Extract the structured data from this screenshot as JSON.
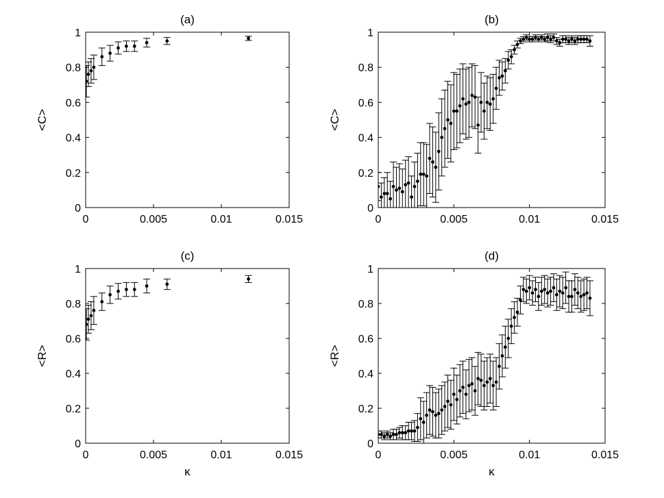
{
  "chart_data": [
    {
      "type": "scatter",
      "title": "(a)",
      "xlabel": "",
      "ylabel": "<C>",
      "xlim": [
        0,
        0.015
      ],
      "ylim": [
        0,
        1
      ],
      "xticks": [
        0,
        0.005,
        0.01,
        0.015
      ],
      "yticks": [
        0,
        0.2,
        0.4,
        0.6,
        0.8,
        1
      ],
      "xtick_labels": [
        "0",
        "0.005",
        "0.01",
        "0.015"
      ],
      "ytick_labels": [
        "0",
        "0.2",
        "0.4",
        "0.6",
        "0.8",
        "1"
      ],
      "error_bars": true,
      "grid": false,
      "series": [
        {
          "x": [
            5e-05,
            0.0002,
            0.0004,
            0.0006,
            0.0012,
            0.0018,
            0.0024,
            0.003,
            0.0036,
            0.0045,
            0.006,
            0.012
          ],
          "y": [
            0.72,
            0.76,
            0.78,
            0.8,
            0.86,
            0.88,
            0.91,
            0.92,
            0.92,
            0.94,
            0.95,
            0.965
          ],
          "err": [
            0.09,
            0.07,
            0.07,
            0.07,
            0.05,
            0.045,
            0.035,
            0.03,
            0.03,
            0.025,
            0.02,
            0.012
          ]
        }
      ]
    },
    {
      "type": "scatter",
      "title": "(b)",
      "xlabel": "",
      "ylabel": "<C>",
      "xlim": [
        0,
        0.015
      ],
      "ylim": [
        0,
        1
      ],
      "xticks": [
        0,
        0.005,
        0.01,
        0.015
      ],
      "yticks": [
        0,
        0.2,
        0.4,
        0.6,
        0.8,
        1
      ],
      "xtick_labels": [
        "0",
        "0.005",
        "0.01",
        "0.015"
      ],
      "ytick_labels": [
        "0",
        "0.2",
        "0.4",
        "0.6",
        "0.8",
        "1"
      ],
      "error_bars": true,
      "grid": false,
      "series": [
        {
          "x": [
            0,
            0.0002,
            0.0004,
            0.0006,
            0.0008,
            0.001,
            0.0012,
            0.0014,
            0.0016,
            0.0018,
            0.002,
            0.0022,
            0.0024,
            0.0026,
            0.0028,
            0.003,
            0.0032,
            0.0034,
            0.0036,
            0.0038,
            0.004,
            0.0042,
            0.0044,
            0.0046,
            0.0048,
            0.005,
            0.0052,
            0.0054,
            0.0056,
            0.0058,
            0.006,
            0.0062,
            0.0064,
            0.0066,
            0.0068,
            0.007,
            0.0072,
            0.0074,
            0.0076,
            0.0078,
            0.008,
            0.0082,
            0.0084,
            0.0086,
            0.0088,
            0.009,
            0.0092,
            0.0094,
            0.0096,
            0.0098,
            0.01,
            0.0102,
            0.0104,
            0.0106,
            0.0108,
            0.011,
            0.0112,
            0.0114,
            0.0116,
            0.0118,
            0.012,
            0.0122,
            0.0124,
            0.0126,
            0.0128,
            0.013,
            0.0132,
            0.0134,
            0.0136,
            0.0138,
            0.014
          ],
          "y": [
            0.12,
            0.06,
            0.08,
            0.08,
            0.05,
            0.12,
            0.1,
            0.11,
            0.09,
            0.13,
            0.14,
            0.06,
            0.12,
            0.15,
            0.19,
            0.19,
            0.18,
            0.28,
            0.26,
            0.23,
            0.32,
            0.4,
            0.45,
            0.5,
            0.48,
            0.55,
            0.55,
            0.58,
            0.62,
            0.59,
            0.6,
            0.64,
            0.63,
            0.47,
            0.6,
            0.55,
            0.6,
            0.59,
            0.62,
            0.68,
            0.74,
            0.75,
            0.78,
            0.84,
            0.86,
            0.9,
            0.93,
            0.95,
            0.96,
            0.97,
            0.96,
            0.96,
            0.97,
            0.96,
            0.97,
            0.96,
            0.97,
            0.96,
            0.97,
            0.95,
            0.94,
            0.96,
            0.96,
            0.95,
            0.96,
            0.95,
            0.96,
            0.96,
            0.96,
            0.96,
            0.95
          ],
          "err": [
            0.08,
            0.08,
            0.09,
            0.12,
            0.1,
            0.14,
            0.13,
            0.14,
            0.13,
            0.14,
            0.15,
            0.12,
            0.14,
            0.16,
            0.18,
            0.18,
            0.18,
            0.2,
            0.2,
            0.2,
            0.22,
            0.22,
            0.22,
            0.22,
            0.22,
            0.22,
            0.21,
            0.21,
            0.2,
            0.2,
            0.2,
            0.18,
            0.18,
            0.16,
            0.17,
            0.16,
            0.15,
            0.15,
            0.14,
            0.12,
            0.1,
            0.08,
            0.07,
            0.05,
            0.04,
            0.025,
            0.02,
            0.015,
            0.015,
            0.015,
            0.015,
            0.015,
            0.015,
            0.015,
            0.015,
            0.015,
            0.02,
            0.02,
            0.02,
            0.02,
            0.02,
            0.02,
            0.02,
            0.02,
            0.02,
            0.02,
            0.02,
            0.02,
            0.02,
            0.02,
            0.03
          ]
        }
      ]
    },
    {
      "type": "scatter",
      "title": "(c)",
      "xlabel": "κ",
      "ylabel": "<R>",
      "xlim": [
        0,
        0.015
      ],
      "ylim": [
        0,
        1
      ],
      "xticks": [
        0,
        0.005,
        0.01,
        0.015
      ],
      "yticks": [
        0,
        0.2,
        0.4,
        0.6,
        0.8,
        1
      ],
      "xtick_labels": [
        "0",
        "0.005",
        "0.01",
        "0.015"
      ],
      "ytick_labels": [
        "0",
        "0.2",
        "0.4",
        "0.6",
        "0.8",
        "1"
      ],
      "error_bars": true,
      "grid": false,
      "series": [
        {
          "x": [
            5e-05,
            0.0002,
            0.0004,
            0.0006,
            0.0012,
            0.0018,
            0.0024,
            0.003,
            0.0036,
            0.0045,
            0.006,
            0.012
          ],
          "y": [
            0.68,
            0.71,
            0.73,
            0.76,
            0.81,
            0.85,
            0.87,
            0.88,
            0.88,
            0.9,
            0.91,
            0.94
          ],
          "err": [
            0.09,
            0.08,
            0.08,
            0.08,
            0.05,
            0.05,
            0.045,
            0.04,
            0.04,
            0.04,
            0.03,
            0.02
          ]
        }
      ]
    },
    {
      "type": "scatter",
      "title": "(d)",
      "xlabel": "κ",
      "ylabel": "<R>",
      "xlim": [
        0,
        0.015
      ],
      "ylim": [
        0,
        1
      ],
      "xticks": [
        0,
        0.005,
        0.01,
        0.015
      ],
      "yticks": [
        0,
        0.2,
        0.4,
        0.6,
        0.8,
        1
      ],
      "xtick_labels": [
        "0",
        "0.005",
        "0.01",
        "0.015"
      ],
      "ytick_labels": [
        "0",
        "0.2",
        "0.4",
        "0.6",
        "0.8",
        "1"
      ],
      "error_bars": true,
      "grid": false,
      "series": [
        {
          "x": [
            0,
            0.0002,
            0.0004,
            0.0006,
            0.0008,
            0.001,
            0.0012,
            0.0014,
            0.0016,
            0.0018,
            0.002,
            0.0022,
            0.0024,
            0.0026,
            0.0028,
            0.003,
            0.0032,
            0.0034,
            0.0036,
            0.0038,
            0.004,
            0.0042,
            0.0044,
            0.0046,
            0.0048,
            0.005,
            0.0052,
            0.0054,
            0.0056,
            0.0058,
            0.006,
            0.0062,
            0.0064,
            0.0066,
            0.0068,
            0.007,
            0.0072,
            0.0074,
            0.0076,
            0.0078,
            0.008,
            0.0082,
            0.0084,
            0.0086,
            0.0088,
            0.009,
            0.0092,
            0.0094,
            0.0096,
            0.0098,
            0.01,
            0.0102,
            0.0104,
            0.0106,
            0.0108,
            0.011,
            0.0112,
            0.0114,
            0.0116,
            0.0118,
            0.012,
            0.0122,
            0.0124,
            0.0126,
            0.0128,
            0.013,
            0.0132,
            0.0134,
            0.0136,
            0.0138,
            0.014
          ],
          "y": [
            0.05,
            0.05,
            0.04,
            0.05,
            0.04,
            0.05,
            0.05,
            0.06,
            0.06,
            0.06,
            0.07,
            0.07,
            0.07,
            0.09,
            0.14,
            0.12,
            0.16,
            0.19,
            0.18,
            0.16,
            0.17,
            0.19,
            0.21,
            0.24,
            0.22,
            0.28,
            0.25,
            0.3,
            0.32,
            0.28,
            0.33,
            0.34,
            0.3,
            0.37,
            0.36,
            0.33,
            0.35,
            0.37,
            0.33,
            0.35,
            0.44,
            0.5,
            0.55,
            0.6,
            0.67,
            0.72,
            0.75,
            0.82,
            0.88,
            0.87,
            0.89,
            0.86,
            0.88,
            0.84,
            0.87,
            0.88,
            0.86,
            0.87,
            0.89,
            0.85,
            0.87,
            0.86,
            0.89,
            0.84,
            0.84,
            0.88,
            0.86,
            0.84,
            0.85,
            0.86,
            0.83
          ],
          "err": [
            0.02,
            0.02,
            0.02,
            0.02,
            0.02,
            0.03,
            0.03,
            0.03,
            0.04,
            0.04,
            0.05,
            0.05,
            0.06,
            0.08,
            0.12,
            0.12,
            0.13,
            0.14,
            0.14,
            0.13,
            0.14,
            0.14,
            0.14,
            0.15,
            0.14,
            0.15,
            0.14,
            0.15,
            0.15,
            0.14,
            0.15,
            0.15,
            0.14,
            0.15,
            0.15,
            0.14,
            0.14,
            0.14,
            0.14,
            0.14,
            0.13,
            0.12,
            0.12,
            0.11,
            0.1,
            0.09,
            0.08,
            0.08,
            0.07,
            0.07,
            0.07,
            0.07,
            0.07,
            0.08,
            0.08,
            0.08,
            0.08,
            0.08,
            0.08,
            0.09,
            0.09,
            0.09,
            0.09,
            0.09,
            0.09,
            0.09,
            0.09,
            0.09,
            0.09,
            0.09,
            0.1
          ]
        }
      ]
    }
  ]
}
